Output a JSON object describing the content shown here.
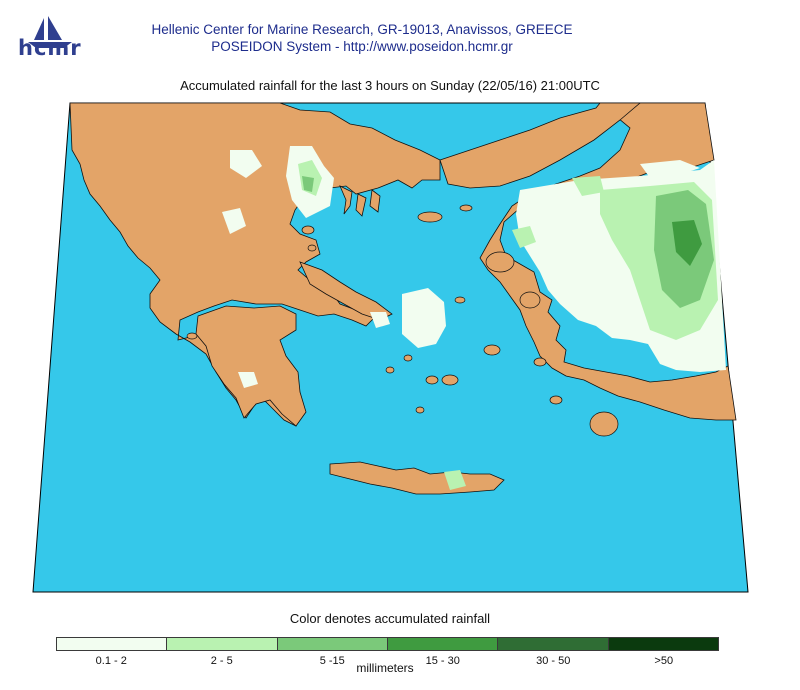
{
  "header": {
    "logo_text": "hcmr",
    "line1": "Hellenic Center for Marine Research, GR-19013, Anavissos, GREECE",
    "line2": "POSEIDON System - http://www.poseidon.hcmr.gr"
  },
  "map": {
    "title": "Accumulated rainfall for the last 3 hours on Sunday (22/05/16) 21:00UTC",
    "sea_color": "#35c8ea",
    "land_color": "#e3a468",
    "border_color": "#000000"
  },
  "legend": {
    "title": "Color denotes accumulated rainfall",
    "unit": "millimeters",
    "classes": [
      {
        "label": "0.1 - 2",
        "color": "#f2fdf0"
      },
      {
        "label": "2 - 5",
        "color": "#b9f2b1"
      },
      {
        "label": "5 -15",
        "color": "#7bc97a"
      },
      {
        "label": "15 - 30",
        "color": "#3f9b40"
      },
      {
        "label": "30 - 50",
        "color": "#2f6d34"
      },
      {
        "label": ">50",
        "color": "#0b3a0e"
      }
    ]
  }
}
